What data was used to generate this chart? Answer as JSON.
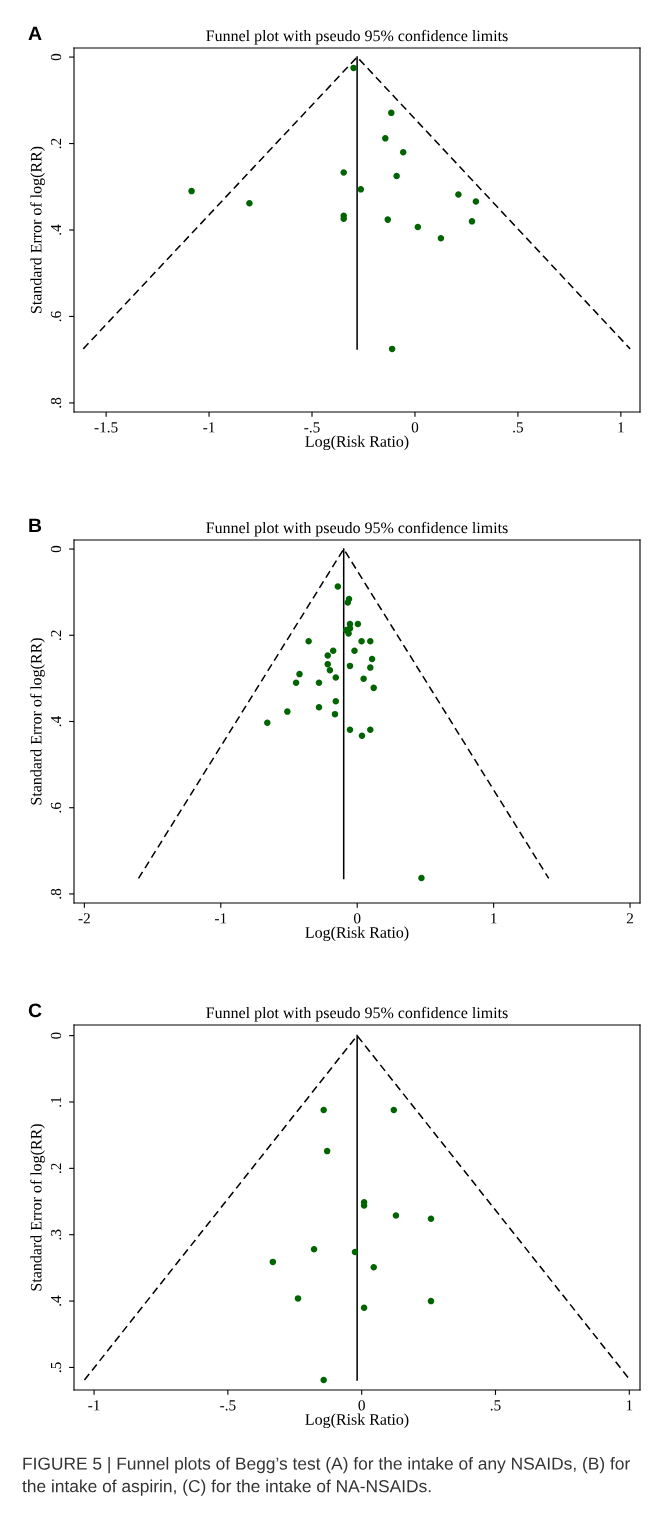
{
  "chart_data": [
    {
      "type": "scatter",
      "title": "Funnel plot with pseudo 95% confidence limits",
      "xlabel": "Log(Risk Ratio)",
      "ylabel": "Standard Error of log(RR)",
      "xlim": [
        -1.656,
        1.093
      ],
      "xticks": [
        {
          "value": -1.5,
          "label": "-1.5"
        },
        {
          "value": -1,
          "label": "-1"
        },
        {
          "value": -0.5,
          "label": "-.5"
        },
        {
          "value": 0,
          "label": "0"
        },
        {
          "value": 0.5,
          "label": ".5"
        },
        {
          "value": 1,
          "label": "1"
        }
      ],
      "ylim": [
        0.821,
        -0.021
      ],
      "yticks": [
        {
          "value": 0,
          "label": "0"
        },
        {
          "value": 0.2,
          "label": ".2"
        },
        {
          "value": 0.4,
          "label": ".4"
        },
        {
          "value": 0.6,
          "label": ".6"
        },
        {
          "value": 0.8,
          "label": ".8"
        }
      ],
      "annotations": [
        "A"
      ],
      "series": [
        {
          "marker": "circle",
          "color": "#006400",
          "x": [
            -0.298,
            -0.115,
            -0.144,
            -0.057,
            -0.346,
            -0.089,
            -1.085,
            -0.263,
            0.211,
            -0.804,
            0.296,
            -0.346,
            -0.346,
            -0.132,
            0.277,
            0.014,
            0.126,
            -0.111
          ],
          "values": [
            0.025,
            0.129,
            0.188,
            0.22,
            0.267,
            0.275,
            0.31,
            0.306,
            0.318,
            0.338,
            0.334,
            0.367,
            0.374,
            0.376,
            0.38,
            0.393,
            0.419,
            0.675
          ]
        },
        {
          "type": "line",
          "marker": "none",
          "color": "#000000",
          "line_style": "dashed",
          "x": [
            -1.611,
            -0.281,
            1.045
          ],
          "values": [
            0.675,
            0,
            0.675
          ]
        },
        {
          "type": "line",
          "marker": "none",
          "color": "#000000",
          "line_style": "solid",
          "x": [
            -0.281,
            -0.281
          ],
          "values": [
            0,
            0.675
          ]
        }
      ]
    },
    {
      "type": "scatter",
      "title": "Funnel plot with pseudo 95% confidence limits",
      "xlabel": "Log(Risk Ratio)",
      "ylabel": "Standard Error of log(RR)",
      "xlim": [
        -2.076,
        2.073
      ],
      "xticks": [
        -2,
        -1,
        0,
        1,
        2
      ],
      "ylim": [
        0.821,
        -0.021
      ],
      "yticks": [
        {
          "value": 0,
          "label": "0"
        },
        {
          "value": 0.2,
          "label": ".2"
        },
        {
          "value": 0.4,
          "label": ".4"
        },
        {
          "value": 0.6,
          "label": ".6"
        },
        {
          "value": 0.8,
          "label": ".8"
        }
      ],
      "annotations": [
        "B"
      ],
      "series": [
        {
          "marker": "circle",
          "color": "#006400",
          "x": [
            -0.142,
            -0.06,
            -0.069,
            -0.053,
            0.005,
            -0.081,
            -0.063,
            -0.053,
            -0.356,
            0.032,
            0.096,
            -0.176,
            -0.02,
            -0.216,
            0.109,
            -0.216,
            -0.053,
            0.096,
            -0.2,
            -0.423,
            -0.157,
            0.047,
            -0.448,
            -0.28,
            0.121,
            -0.157,
            -0.28,
            -0.512,
            -0.163,
            -0.659,
            -0.053,
            0.096,
            0.035,
            0.471
          ],
          "values": [
            0.087,
            0.116,
            0.124,
            0.174,
            0.174,
            0.188,
            0.196,
            0.184,
            0.214,
            0.214,
            0.214,
            0.236,
            0.236,
            0.247,
            0.255,
            0.267,
            0.271,
            0.275,
            0.281,
            0.29,
            0.298,
            0.301,
            0.31,
            0.31,
            0.322,
            0.353,
            0.367,
            0.377,
            0.383,
            0.403,
            0.419,
            0.419,
            0.433,
            0.763
          ]
        },
        {
          "type": "line",
          "marker": "none",
          "color": "#000000",
          "line_style": "dashed",
          "x": [
            -1.603,
            -0.099,
            1.404
          ],
          "values": [
            0.764,
            0,
            0.764
          ]
        },
        {
          "type": "line",
          "marker": "none",
          "color": "#000000",
          "line_style": "solid",
          "x": [
            -0.099,
            -0.099
          ],
          "values": [
            0,
            0.764
          ]
        }
      ]
    },
    {
      "type": "scatter",
      "title": "Funnel plot with pseudo 95% confidence limits",
      "xlabel": "Log(Risk Ratio)",
      "ylabel": "Standard Error of log(RR)",
      "xlim": [
        -1.075,
        1.04
      ],
      "xticks": [
        {
          "value": -1,
          "label": "-1"
        },
        {
          "value": -0.5,
          "label": "-.5"
        },
        {
          "value": 0,
          "label": "0"
        },
        {
          "value": 0.5,
          "label": ".5"
        },
        {
          "value": 1,
          "label": "1"
        }
      ],
      "ylim": [
        0.534,
        -0.016
      ],
      "yticks": [
        {
          "value": 0,
          "label": "0"
        },
        {
          "value": 0.1,
          "label": ".1"
        },
        {
          "value": 0.2,
          "label": ".2"
        },
        {
          "value": 0.3,
          "label": ".3"
        },
        {
          "value": 0.4,
          "label": ".4"
        },
        {
          "value": 0.5,
          "label": ".5"
        }
      ],
      "annotations": [
        "C",
        "FIGURE 5 | Funnel plots of Begg’s test (A) for the intake of any NSAIDs, (B) for the intake of aspirin, (C) for the intake of NA-NSAIDs."
      ],
      "series": [
        {
          "marker": "circle",
          "color": "#006400",
          "x": [
            -0.142,
            0.12,
            -0.129,
            0.009,
            0.009,
            0.128,
            0.259,
            -0.178,
            -0.025,
            -0.332,
            0.045,
            -0.238,
            0.259,
            0.009,
            -0.142
          ],
          "values": [
            0.112,
            0.112,
            0.174,
            0.251,
            0.256,
            0.271,
            0.276,
            0.322,
            0.326,
            0.341,
            0.349,
            0.396,
            0.4,
            0.41,
            0.519
          ]
        },
        {
          "type": "line",
          "marker": "none",
          "color": "#000000",
          "line_style": "dashed",
          "x": [
            -1.036,
            -0.017,
            1.003
          ],
          "values": [
            0.519,
            0,
            0.519
          ]
        },
        {
          "type": "line",
          "marker": "none",
          "color": "#000000",
          "line_style": "solid",
          "x": [
            -0.017,
            -0.017
          ],
          "values": [
            0,
            0.519
          ]
        }
      ]
    }
  ]
}
